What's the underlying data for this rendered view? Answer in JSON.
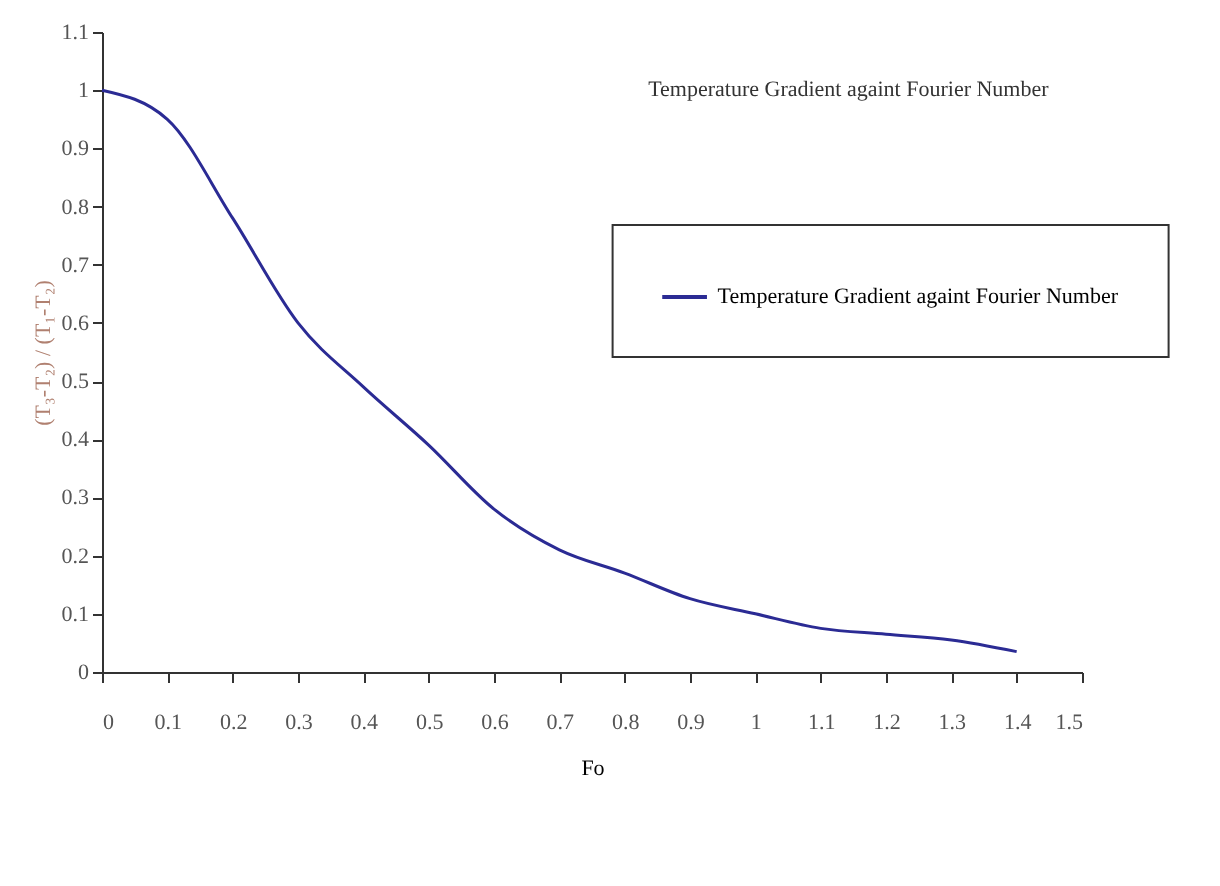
{
  "chart_data": {
    "type": "line",
    "title": "Temperature Gradient againt Fourier Number",
    "xlabel": "Fo",
    "ylabel": "(T₃-T₂) / (T₁-T₂)",
    "x": [
      0,
      0.1,
      0.2,
      0.3,
      0.4,
      0.5,
      0.6,
      0.7,
      0.8,
      0.9,
      1.0,
      1.1,
      1.2,
      1.3,
      1.4
    ],
    "series": [
      {
        "name": "Temperature Gradient againt Fourier Number",
        "color": "#2b2b94",
        "values": [
          1.0,
          0.95,
          0.78,
          0.6,
          0.49,
          0.39,
          0.28,
          0.21,
          0.17,
          0.126,
          0.1,
          0.075,
          0.065,
          0.055,
          0.035
        ]
      }
    ],
    "xlim": [
      0,
      1.5
    ],
    "xticks": [
      0,
      0.1,
      0.2,
      0.3,
      0.4,
      0.5,
      0.6,
      0.7,
      0.8,
      0.9,
      1,
      1.1,
      1.2,
      1.3,
      1.4,
      1.5
    ],
    "ylim": [
      0,
      1.1
    ],
    "yticks": [
      0,
      0.1,
      0.2,
      0.3,
      0.4,
      0.5,
      0.6,
      0.7,
      0.8,
      0.9,
      1,
      1.1
    ],
    "grid": false,
    "legend": "right",
    "marker": "none",
    "line_style": "solid"
  }
}
